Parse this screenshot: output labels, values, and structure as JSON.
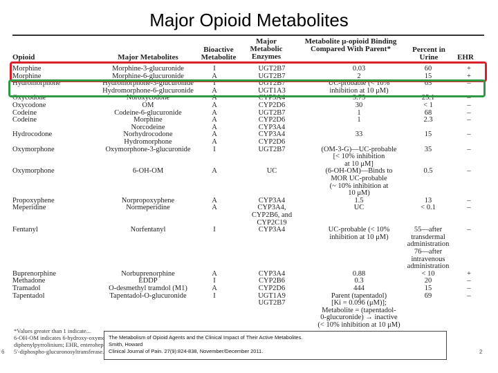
{
  "slide": {
    "title": "Major Opioid Metabolites",
    "page_number": "2",
    "side_mark": "6"
  },
  "table": {
    "headers": {
      "opioid": "Opioid",
      "metabolites": "Major Metabolites",
      "bioactive": "Bioactive Metabolite",
      "enzymes": "Major Metabolic Enzymes",
      "binding": "Metabolite μ-opioid Binding Compared With Parent*",
      "urine": "Percent in Urine",
      "ehr": "EHR"
    },
    "rows": [
      [
        "Morphine",
        "Morphine-3-glucuronide",
        "I",
        "UGT2B7",
        "0.03",
        "60",
        "+"
      ],
      [
        "Morphine",
        "Morphine-6-glucuronide",
        "A",
        "UGT2B7",
        "2",
        "15",
        "+"
      ],
      [
        "Hydromorphone",
        "Hydromorphone-3-glucuronide",
        "I",
        "UGT2B7",
        "UC-probable (< 10%",
        "65",
        "–"
      ],
      [
        "",
        "Hydromorphone-6-glucuronide",
        "A",
        "UGT1A3",
        "inhibition at 10 μM)",
        "",
        ""
      ],
      [
        "Oxycodone",
        "Noroxycodone",
        "A",
        "CYP3A4",
        "3.75",
        "25.1",
        "–"
      ],
      [
        "Oxycodone",
        "OM",
        "A",
        "CYP2D6",
        "30",
        "< 1",
        "–"
      ],
      [
        "Codeine",
        "Codeine-6-glucuronide",
        "A",
        "UGT2B7",
        "1",
        "68",
        "–"
      ],
      [
        "Codeine",
        "Morphine",
        "A",
        "CYP2D6",
        "1",
        "2.3",
        "–"
      ],
      [
        "",
        "Norcodeine",
        "A",
        "CYP3A4",
        "",
        "",
        ""
      ],
      [
        "Hydrocodone",
        "Norhydrocodone",
        "A",
        "CYP3A4",
        "33",
        "15",
        "–"
      ],
      [
        "",
        "Hydromorphone",
        "A",
        "CYP2D6",
        "",
        "",
        ""
      ],
      [
        "Oxymorphone",
        "Oxymorphone-3-glucuronide",
        "I",
        "UGT2B7",
        "(OM-3-G)—UC-probable",
        "35",
        "–"
      ],
      [
        "",
        "",
        "",
        "",
        "[< 10% inhibition",
        "",
        ""
      ],
      [
        "",
        "",
        "",
        "",
        "at 10 μM]",
        "",
        ""
      ],
      [
        "Oxymorphone",
        "6-OH-OM",
        "A",
        "UC",
        "(6-OH-OM)—Binds to",
        "0.5",
        "–"
      ],
      [
        "",
        "",
        "",
        "",
        "MOR UC-probable",
        "",
        ""
      ],
      [
        "",
        "",
        "",
        "",
        "(~ 10% inhibition at",
        "",
        ""
      ],
      [
        "",
        "",
        "",
        "",
        "10 μM)",
        "",
        ""
      ],
      [
        "Propoxyphene",
        "Norpropoxyphene",
        "A",
        "CYP3A4",
        "1.5",
        "13",
        "–"
      ],
      [
        "Meperidine",
        "Normeperidine",
        "A",
        "CYP3A4,",
        "UC",
        "< 0.1",
        "–"
      ],
      [
        "",
        "",
        "",
        "CYP2B6, and",
        "",
        "",
        ""
      ],
      [
        "",
        "",
        "",
        "CYP2C19",
        "",
        "",
        ""
      ],
      [
        "Fentanyl",
        "Norfentanyl",
        "I",
        "CYP3A4",
        "UC-probable (< 10%",
        "55—after",
        "–"
      ],
      [
        "",
        "",
        "",
        "",
        "inhibition at 10 μM)",
        "transdermal",
        ""
      ],
      [
        "",
        "",
        "",
        "",
        "",
        "administration",
        ""
      ],
      [
        "",
        "",
        "",
        "",
        "",
        "76—after",
        ""
      ],
      [
        "",
        "",
        "",
        "",
        "",
        "intravenous",
        ""
      ],
      [
        "",
        "",
        "",
        "",
        "",
        "administration",
        ""
      ],
      [
        "Buprenorphine",
        "Norbuprenorphine",
        "A",
        "CYP3A4",
        "0.88",
        "< 10",
        "+"
      ],
      [
        "Methadone",
        "EDDP",
        "I",
        "CYP2B6",
        "0.3",
        "20",
        "–"
      ],
      [
        "Tramadol",
        "O-desmethyl tramdol (M1)",
        "A",
        "CYP2D6",
        "444",
        "15",
        "–"
      ],
      [
        "Tapentadol",
        "Tapentadol-O-glucuronide",
        "I",
        "UGT1A9",
        "Parent (tapentadol)",
        "69",
        "–"
      ],
      [
        "",
        "",
        "",
        "UGT2B7",
        "[Ki = 0.096 (μM)];",
        "",
        ""
      ],
      [
        "",
        "",
        "",
        "",
        "Metabolite = (tapentadol-",
        "",
        ""
      ],
      [
        "",
        "",
        "",
        "",
        "0-glucuronide) → inactive",
        "",
        ""
      ],
      [
        "",
        "",
        "",
        "",
        "(< 10% inhibition at 10 μM)",
        "",
        ""
      ]
    ],
    "footnote_lines": [
      "*Values greater than 1 indicate...",
      "6-OH-OM indicates 6-hydroxy-oxymorphone; A, active for analgesia; CYP, cytochrome; EDDP, N-demethylation to 2-ethyl-1,5-dimethyl-3,3-",
      "diphenylpyrrolinium; EHR, enterohepatic recirculation; I, inactive for analgesia; MOR, μ-opioid receptor; OM, oxymorphone; UC, uncertain; UGT, uridine",
      "5'-diphospho-glucuronosyltransferase."
    ]
  },
  "caption": {
    "line1": "The Metabolism of Opioid Agents and the Clinical Impact of Their Active Metabolites.",
    "line2": "Smith, Howard",
    "line3": "Clinical Journal of Pain. 27(9):824-838, November/December 2011."
  },
  "highlight_colors": {
    "red_box": "#d81f2a",
    "green_box": "#2e9a44"
  }
}
